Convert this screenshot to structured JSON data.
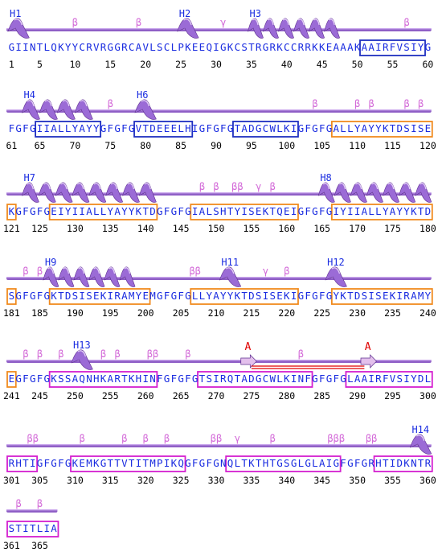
{
  "colors": {
    "helix": "#9b6bd6",
    "helix_dark": "#5e2f8f",
    "coil": "#8f5fc6",
    "sequence": "#1a2ce0",
    "annotation": "#d36ad8",
    "helix_label": "#1a2ce0",
    "sheet_label": "#e00000",
    "strand": "#e3c0ec",
    "box_blue": "#1f2fc0",
    "box_orange": "#f08a1e",
    "box_magenta": "#d41fcf",
    "bridge": "#e00000",
    "numbers": "#000000"
  },
  "rows": [
    {
      "sequence": "GIINTLQKYYCRVRGGRCAVLSCLPKEEQIGKCSTRGRKCCRRKKEAAAKAAIRFVSIYG",
      "start": 1,
      "ticks": [
        1,
        5,
        10,
        15,
        20,
        25,
        30,
        35,
        40,
        45,
        50,
        55,
        60
      ],
      "helices": [
        {
          "label": "H1",
          "from": 1,
          "to": 3
        },
        {
          "label": "H2",
          "from": 25,
          "to": 27
        },
        {
          "label": "H3",
          "from": 35,
          "to": 47
        }
      ],
      "strands": [],
      "annotations": [
        {
          "text": "β",
          "pos": 10
        },
        {
          "text": "β",
          "pos": 19
        },
        {
          "text": "γ",
          "pos": 31
        },
        {
          "text": "β",
          "pos": 57
        }
      ],
      "boxes": [
        {
          "from": 51,
          "to": 59,
          "color": "blue"
        }
      ],
      "labels": []
    },
    {
      "sequence": "FGFGIIALLYAYYGFGFGVTDEEELHIGFGFGTADGCWLKIGFGFGALLYAYYKTDSISE",
      "start": 61,
      "ticks": [
        61,
        65,
        70,
        75,
        80,
        85,
        90,
        95,
        100,
        105,
        110,
        115,
        120
      ],
      "helices": [
        {
          "label": "H4",
          "from": 63,
          "to": 72
        },
        {
          "label": "H6",
          "from": 79,
          "to": 81
        }
      ],
      "strands": [],
      "annotations": [
        {
          "text": "β",
          "pos": 75
        },
        {
          "text": "β",
          "pos": 104
        },
        {
          "text": "β",
          "pos": 110
        },
        {
          "text": "β",
          "pos": 112
        },
        {
          "text": "β",
          "pos": 117
        },
        {
          "text": "β",
          "pos": 119
        }
      ],
      "boxes": [
        {
          "from": 65,
          "to": 73,
          "color": "blue"
        },
        {
          "from": 79,
          "to": 86,
          "color": "blue"
        },
        {
          "from": 93,
          "to": 101,
          "color": "blue"
        },
        {
          "from": 107,
          "to": 120,
          "color": "orange"
        }
      ],
      "labels": []
    },
    {
      "sequence": "KGFGFGEIYIIALLYAYYKTDGFGFGIALSHTYISEKTQEIGFGFGIYIIALLYAYYKTD",
      "start": 121,
      "ticks": [
        121,
        125,
        130,
        135,
        140,
        145,
        150,
        155,
        160,
        165,
        170,
        175,
        180
      ],
      "helices": [
        {
          "label": "H7",
          "from": 123,
          "to": 141
        },
        {
          "label": "H8",
          "from": 165,
          "to": 180
        }
      ],
      "strands": [],
      "annotations": [
        {
          "text": "β",
          "pos": 148
        },
        {
          "text": "β",
          "pos": 150
        },
        {
          "text": "ββ",
          "pos": 153
        },
        {
          "text": "γ",
          "pos": 156
        },
        {
          "text": "β",
          "pos": 158
        }
      ],
      "boxes": [
        {
          "from": 121,
          "to": 121,
          "color": "orange"
        },
        {
          "from": 127,
          "to": 141,
          "color": "orange"
        },
        {
          "from": 147,
          "to": 161,
          "color": "orange"
        },
        {
          "from": 167,
          "to": 180,
          "color": "orange"
        }
      ],
      "labels": []
    },
    {
      "sequence": "SGFGFGKTDSISEKIRAMYEMGFGFGLLYAYYKTDSISEKIGFGFGYKTDSISEKIRAMY",
      "start": 181,
      "ticks": [
        181,
        185,
        190,
        195,
        200,
        205,
        210,
        215,
        220,
        225,
        230,
        235,
        240
      ],
      "helices": [
        {
          "label": "H9",
          "from": 186,
          "to": 198
        },
        {
          "label": "H11",
          "from": 211,
          "to": 213
        },
        {
          "label": "H12",
          "from": 226,
          "to": 228
        }
      ],
      "strands": [],
      "annotations": [
        {
          "text": "β",
          "pos": 183
        },
        {
          "text": "β",
          "pos": 185
        },
        {
          "text": "ββ",
          "pos": 207
        },
        {
          "text": "γ",
          "pos": 217
        },
        {
          "text": "β",
          "pos": 220
        }
      ],
      "boxes": [
        {
          "from": 181,
          "to": 181,
          "color": "orange"
        },
        {
          "from": 187,
          "to": 200,
          "color": "orange"
        },
        {
          "from": 207,
          "to": 221,
          "color": "orange"
        },
        {
          "from": 227,
          "to": 240,
          "color": "orange"
        }
      ],
      "labels": []
    },
    {
      "sequence": "EGFGFGKSSAQNHKARTKHINFGFGFGTSIRQTADGCWLKINFGFGFGLAAIRFVSIYDL",
      "start": 241,
      "ticks": [
        241,
        245,
        250,
        255,
        260,
        265,
        270,
        275,
        280,
        285,
        290,
        295,
        300
      ],
      "helices": [
        {
          "label": "H13",
          "from": 250,
          "to": 252
        }
      ],
      "strands": [
        {
          "label": "A",
          "from": 274,
          "to": 275
        },
        {
          "label": "A",
          "from": 291,
          "to": 292
        }
      ],
      "bridge": {
        "from": 275,
        "to": 291
      },
      "annotations": [
        {
          "text": "β",
          "pos": 243
        },
        {
          "text": "β",
          "pos": 245
        },
        {
          "text": "β",
          "pos": 248
        },
        {
          "text": "β",
          "pos": 254
        },
        {
          "text": "β",
          "pos": 256
        },
        {
          "text": "ββ",
          "pos": 261
        },
        {
          "text": "β",
          "pos": 266
        },
        {
          "text": "β",
          "pos": 282
        }
      ],
      "boxes": [
        {
          "from": 241,
          "to": 241,
          "color": "orange"
        },
        {
          "from": 247,
          "to": 261,
          "color": "magenta"
        },
        {
          "from": 268,
          "to": 283,
          "color": "magenta"
        },
        {
          "from": 289,
          "to": 300,
          "color": "magenta"
        }
      ],
      "labels": []
    },
    {
      "sequence": "RHTIGFGFGKEMKGTTVTITMPIKQGFGFGNQLTKTHTGSGLGLAIGFGFGRHTIDKNTR",
      "start": 301,
      "ticks": [
        301,
        305,
        310,
        315,
        320,
        325,
        330,
        335,
        340,
        345,
        350,
        355,
        360
      ],
      "helices": [
        {
          "label": "H14",
          "from": 358,
          "to": 360
        }
      ],
      "strands": [],
      "annotations": [
        {
          "text": "ββ",
          "pos": 304
        },
        {
          "text": "β",
          "pos": 311
        },
        {
          "text": "β",
          "pos": 317
        },
        {
          "text": "β",
          "pos": 320
        },
        {
          "text": "β",
          "pos": 323
        },
        {
          "text": "ββ",
          "pos": 330
        },
        {
          "text": "γ",
          "pos": 333
        },
        {
          "text": "β",
          "pos": 338
        },
        {
          "text": "βββ",
          "pos": 347
        },
        {
          "text": "ββ",
          "pos": 352
        }
      ],
      "boxes": [
        {
          "from": 301,
          "to": 304,
          "color": "magenta"
        },
        {
          "from": 310,
          "to": 325,
          "color": "magenta"
        },
        {
          "from": 332,
          "to": 347,
          "color": "magenta"
        },
        {
          "from": 353,
          "to": 360,
          "color": "magenta"
        }
      ],
      "labels": []
    },
    {
      "sequence": "STITLIA",
      "start": 361,
      "ticks": [
        361,
        365
      ],
      "helices": [],
      "strands": [],
      "annotations": [
        {
          "text": "β",
          "pos": 362
        },
        {
          "text": "β",
          "pos": 365
        }
      ],
      "boxes": [
        {
          "from": 361,
          "to": 367,
          "color": "magenta"
        }
      ],
      "labels": []
    }
  ]
}
